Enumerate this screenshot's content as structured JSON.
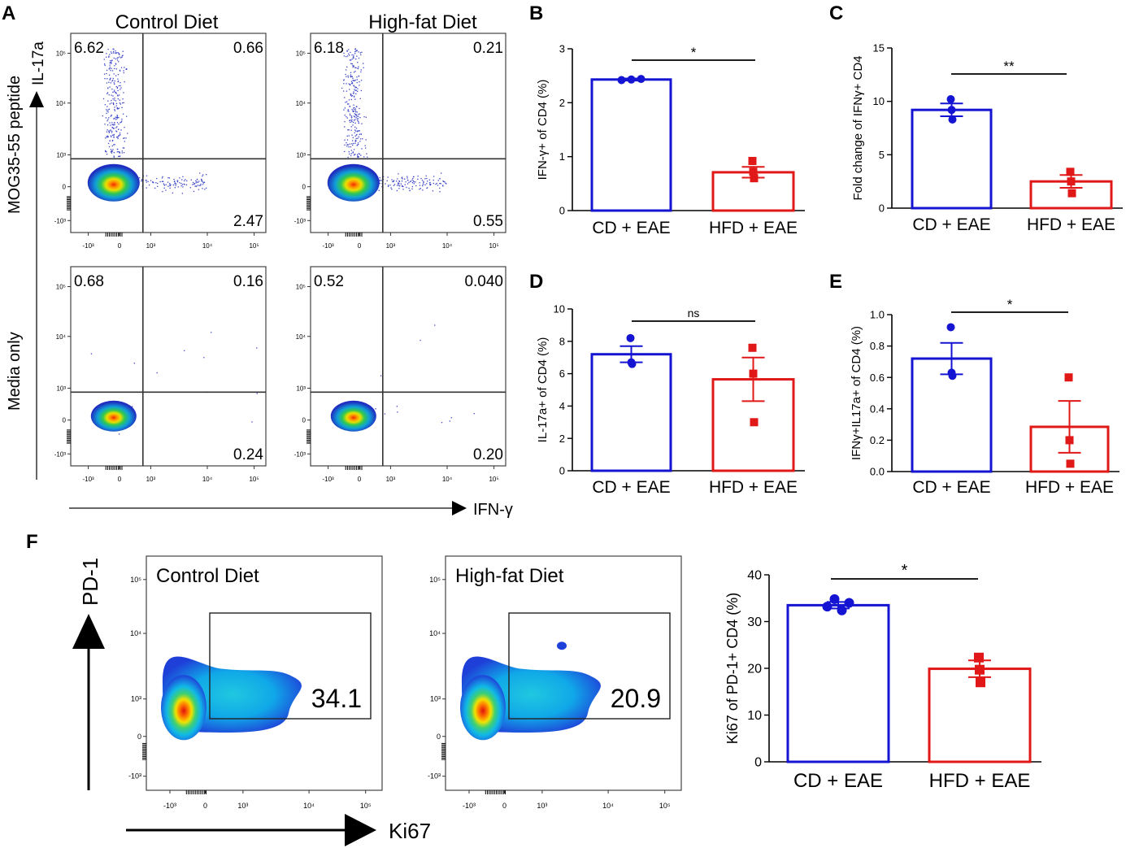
{
  "panel_letters": [
    "A",
    "B",
    "C",
    "D",
    "E",
    "F"
  ],
  "colors": {
    "cd": "#1414d2",
    "hfd": "#e01818",
    "axis": "#000000",
    "gate": "#333333"
  },
  "flow_a": {
    "col_titles": [
      "Control Diet",
      "High-fat Diet"
    ],
    "row_titles": [
      "MOG35-55 peptide",
      "Media only"
    ],
    "y_marker": "IL-17a",
    "x_marker": "IFN-γ",
    "y_ticks": [
      "10⁵",
      "10⁴",
      "10³",
      "0",
      "-10³"
    ],
    "x_ticks": [
      "-10³",
      "0",
      "10³",
      "10⁴",
      "10⁵"
    ],
    "plots": [
      {
        "row": 0,
        "col": 0,
        "q_ul": "6.62",
        "q_ur": "0.66",
        "q_lr": "2.47"
      },
      {
        "row": 0,
        "col": 1,
        "q_ul": "6.18",
        "q_ur": "0.21",
        "q_lr": "0.55"
      },
      {
        "row": 1,
        "col": 0,
        "q_ul": "0.68",
        "q_ur": "0.16",
        "q_lr": "0.24"
      },
      {
        "row": 1,
        "col": 1,
        "q_ul": "0.52",
        "q_ur": "0.040",
        "q_lr": "0.20"
      }
    ]
  },
  "flow_f": {
    "y_label": "PD-1",
    "x_label": "Ki67",
    "y_ticks": [
      "10⁵",
      "10⁴",
      "10³",
      "0",
      "-10³"
    ],
    "x_ticks": [
      "-10³",
      "0",
      "10³",
      "10⁴",
      "10⁵"
    ],
    "plots": [
      {
        "title": "Control Diet",
        "gate_value": "34.1"
      },
      {
        "title": "High-fat Diet",
        "gate_value": "20.9"
      }
    ]
  },
  "chart_data": [
    {
      "panel": "B",
      "type": "bar",
      "ylabel": "IFN-γ+ of CD4 (%)",
      "categories": [
        "CD + EAE",
        "HFD + EAE"
      ],
      "ylim": [
        0,
        3
      ],
      "yticks": [
        0,
        1,
        2,
        3
      ],
      "series": [
        {
          "name": "CD + EAE",
          "mean": 2.43,
          "sem": 0.02,
          "points": [
            2.42,
            2.43,
            2.44
          ]
        },
        {
          "name": "HFD + EAE",
          "mean": 0.71,
          "sem": 0.1,
          "points": [
            0.92,
            0.72,
            0.6
          ]
        }
      ],
      "significance": "*"
    },
    {
      "panel": "C",
      "type": "bar",
      "ylabel": "Fold change of IFNγ+ CD4",
      "categories": [
        "CD + EAE",
        "HFD + EAE"
      ],
      "ylim": [
        0,
        15
      ],
      "yticks": [
        0,
        5,
        10,
        15
      ],
      "series": [
        {
          "name": "CD + EAE",
          "mean": 9.2,
          "sem": 0.6,
          "points": [
            10.2,
            9.2,
            8.3
          ]
        },
        {
          "name": "HFD + EAE",
          "mean": 2.5,
          "sem": 0.6,
          "points": [
            3.4,
            2.5,
            1.4
          ]
        }
      ],
      "significance": "**"
    },
    {
      "panel": "D",
      "type": "bar",
      "ylabel": "IL-17a+ of CD4 (%)",
      "categories": [
        "CD + EAE",
        "HFD + EAE"
      ],
      "ylim": [
        0,
        10
      ],
      "yticks": [
        0,
        2,
        4,
        6,
        8,
        10
      ],
      "series": [
        {
          "name": "CD + EAE",
          "mean": 7.2,
          "sem": 0.5,
          "points": [
            8.2,
            6.7,
            6.6
          ]
        },
        {
          "name": "HFD + EAE",
          "mean": 5.65,
          "sem": 1.35,
          "points": [
            7.6,
            6.0,
            3.0
          ]
        }
      ],
      "significance": "ns"
    },
    {
      "panel": "E",
      "type": "bar",
      "ylabel": "IFNγ+IL17a+ of CD4 (%)",
      "categories": [
        "CD + EAE",
        "HFD + EAE"
      ],
      "ylim": [
        0,
        1.0
      ],
      "yticks": [
        0.0,
        0.2,
        0.4,
        0.6,
        0.8,
        1.0
      ],
      "series": [
        {
          "name": "CD + EAE",
          "mean": 0.72,
          "sem": 0.1,
          "points": [
            0.92,
            0.63,
            0.61
          ]
        },
        {
          "name": "HFD + EAE",
          "mean": 0.285,
          "sem": 0.165,
          "points": [
            0.6,
            0.2,
            0.05
          ]
        }
      ],
      "significance": "*"
    },
    {
      "panel": "F",
      "type": "bar",
      "ylabel": "Ki67 of PD-1+ CD4 (%)",
      "categories": [
        "CD + EAE",
        "HFD + EAE"
      ],
      "ylim": [
        0,
        40
      ],
      "yticks": [
        0,
        10,
        20,
        30,
        40
      ],
      "series": [
        {
          "name": "CD + EAE",
          "mean": 33.5,
          "sem": 0.7,
          "points": [
            33.2,
            34.8,
            32.4,
            34.0
          ]
        },
        {
          "name": "HFD + EAE",
          "mean": 19.9,
          "sem": 1.8,
          "points": [
            22.3,
            19.7,
            17.0
          ]
        }
      ],
      "significance": "*"
    }
  ]
}
